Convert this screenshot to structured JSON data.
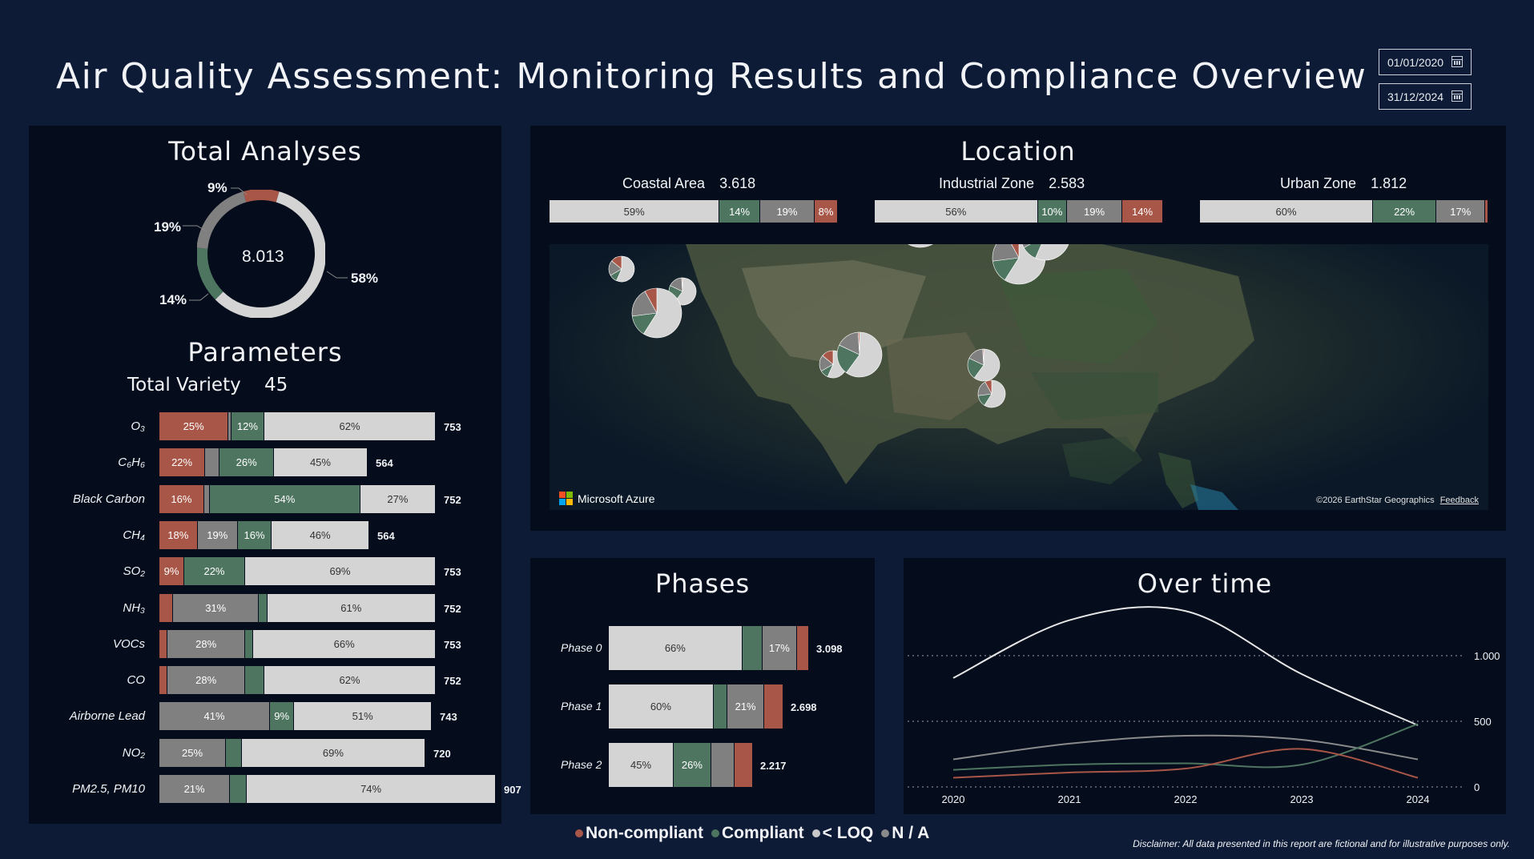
{
  "header": {
    "title": "Air Quality Assessment: Monitoring Results and Compliance Overview",
    "date_start": "01/01/2020",
    "date_end": "31/12/2024"
  },
  "colors": {
    "non_compliant": "#a85648",
    "compliant": "#4e7560",
    "loq": "#808080",
    "na": "#d4d4d4"
  },
  "total_analyses": {
    "title": "Total Analyses",
    "total": "8.013",
    "slices": [
      {
        "category": "Non-compliant",
        "value": 9,
        "label": "9%"
      },
      {
        "category": "< LOQ",
        "value": 19,
        "label": "19%"
      },
      {
        "category": "Compliant",
        "value": 14,
        "label": "14%"
      },
      {
        "category": "N / A",
        "value": 58,
        "label": "58%"
      }
    ]
  },
  "parameters": {
    "title": "Parameters",
    "variety_label": "Total Variety",
    "variety_value": "45",
    "rows": [
      {
        "name": "O₃",
        "total": "753",
        "segs": [
          {
            "c": "nc",
            "v": 25,
            "t": "25%"
          },
          {
            "c": "lq",
            "v": 1,
            "t": ""
          },
          {
            "c": "co",
            "v": 12,
            "t": "12%"
          },
          {
            "c": "na",
            "v": 62,
            "t": "62%"
          }
        ]
      },
      {
        "name": "C₆H₆",
        "total": "564",
        "segs": [
          {
            "c": "nc",
            "v": 22,
            "t": "22%"
          },
          {
            "c": "lq",
            "v": 7,
            "t": ""
          },
          {
            "c": "co",
            "v": 26,
            "t": "26%"
          },
          {
            "c": "na",
            "v": 45,
            "t": "45%"
          }
        ]
      },
      {
        "name": "Black Carbon",
        "total": "752",
        "segs": [
          {
            "c": "nc",
            "v": 16,
            "t": "16%"
          },
          {
            "c": "lq",
            "v": 2,
            "t": ""
          },
          {
            "c": "co",
            "v": 54,
            "t": "54%"
          },
          {
            "c": "na",
            "v": 27,
            "t": "27%"
          }
        ]
      },
      {
        "name": "CH₄",
        "total": "564",
        "segs": [
          {
            "c": "nc",
            "v": 18,
            "t": "18%"
          },
          {
            "c": "lq",
            "v": 19,
            "t": "19%"
          },
          {
            "c": "co",
            "v": 16,
            "t": "16%"
          },
          {
            "c": "na",
            "v": 46,
            "t": "46%"
          }
        ]
      },
      {
        "name": "SO₂",
        "total": "753",
        "segs": [
          {
            "c": "nc",
            "v": 9,
            "t": "9%"
          },
          {
            "c": "co",
            "v": 22,
            "t": "22%"
          },
          {
            "c": "na",
            "v": 69,
            "t": "69%"
          }
        ]
      },
      {
        "name": "NH₃",
        "total": "752",
        "segs": [
          {
            "c": "nc",
            "v": 5,
            "t": ""
          },
          {
            "c": "lq",
            "v": 31,
            "t": "31%"
          },
          {
            "c": "co",
            "v": 3,
            "t": ""
          },
          {
            "c": "na",
            "v": 61,
            "t": "61%"
          }
        ]
      },
      {
        "name": "VOCs",
        "total": "753",
        "segs": [
          {
            "c": "nc",
            "v": 3,
            "t": ""
          },
          {
            "c": "lq",
            "v": 28,
            "t": "28%"
          },
          {
            "c": "co",
            "v": 3,
            "t": ""
          },
          {
            "c": "na",
            "v": 66,
            "t": "66%"
          }
        ]
      },
      {
        "name": "CO",
        "total": "752",
        "segs": [
          {
            "c": "nc",
            "v": 3,
            "t": ""
          },
          {
            "c": "lq",
            "v": 28,
            "t": "28%"
          },
          {
            "c": "co",
            "v": 7,
            "t": ""
          },
          {
            "c": "na",
            "v": 62,
            "t": "62%"
          }
        ]
      },
      {
        "name": "Airborne Lead",
        "total": "743",
        "segs": [
          {
            "c": "lq",
            "v": 41,
            "t": "41%"
          },
          {
            "c": "co",
            "v": 9,
            "t": "9%"
          },
          {
            "c": "na",
            "v": 51,
            "t": "51%"
          }
        ]
      },
      {
        "name": "NO₂",
        "total": "720",
        "segs": [
          {
            "c": "lq",
            "v": 25,
            "t": "25%"
          },
          {
            "c": "co",
            "v": 6,
            "t": ""
          },
          {
            "c": "na",
            "v": 69,
            "t": "69%"
          }
        ]
      },
      {
        "name": "PM2.5, PM10",
        "total": "907",
        "segs": [
          {
            "c": "lq",
            "v": 21,
            "t": "21%"
          },
          {
            "c": "co",
            "v": 5,
            "t": ""
          },
          {
            "c": "na",
            "v": 74,
            "t": "74%"
          }
        ]
      }
    ]
  },
  "location": {
    "title": "Location",
    "zones": [
      {
        "name": "Coastal Area",
        "total": "3.618",
        "segs": [
          {
            "c": "na",
            "v": 59,
            "t": "59%"
          },
          {
            "c": "co",
            "v": 14,
            "t": "14%"
          },
          {
            "c": "lq",
            "v": 19,
            "t": "19%"
          },
          {
            "c": "nc",
            "v": 8,
            "t": "8%"
          }
        ]
      },
      {
        "name": "Industrial Zone",
        "total": "2.583",
        "segs": [
          {
            "c": "na",
            "v": 56,
            "t": "56%"
          },
          {
            "c": "co",
            "v": 10,
            "t": "10%"
          },
          {
            "c": "lq",
            "v": 19,
            "t": "19%"
          },
          {
            "c": "nc",
            "v": 14,
            "t": "14%"
          }
        ]
      },
      {
        "name": "Urban Zone",
        "total": "1.812",
        "segs": [
          {
            "c": "na",
            "v": 60,
            "t": "60%"
          },
          {
            "c": "co",
            "v": 22,
            "t": "22%"
          },
          {
            "c": "lq",
            "v": 17,
            "t": "17%"
          },
          {
            "c": "nc",
            "v": 1,
            "t": ""
          }
        ]
      }
    ],
    "map": {
      "brand": "Microsoft Azure",
      "credit": "©2026 EarthStar Geographics",
      "feedback": "Feedback"
    }
  },
  "phases": {
    "title": "Phases",
    "rows": [
      {
        "name": "Phase 0",
        "total": "3.098",
        "segs": [
          {
            "c": "na",
            "v": 66,
            "t": "66%"
          },
          {
            "c": "co",
            "v": 10,
            "t": ""
          },
          {
            "c": "lq",
            "v": 17,
            "t": "17%"
          },
          {
            "c": "nc",
            "v": 6,
            "t": ""
          }
        ]
      },
      {
        "name": "Phase 1",
        "total": "2.698",
        "segs": [
          {
            "c": "na",
            "v": 60,
            "t": "60%"
          },
          {
            "c": "co",
            "v": 8,
            "t": ""
          },
          {
            "c": "lq",
            "v": 21,
            "t": "21%"
          },
          {
            "c": "nc",
            "v": 11,
            "t": ""
          }
        ]
      },
      {
        "name": "Phase 2",
        "total": "2.217",
        "segs": [
          {
            "c": "na",
            "v": 45,
            "t": "45%"
          },
          {
            "c": "co",
            "v": 26,
            "t": "26%"
          },
          {
            "c": "lq",
            "v": 16,
            "t": ""
          },
          {
            "c": "nc",
            "v": 13,
            "t": ""
          }
        ]
      }
    ]
  },
  "chart_data": {
    "type": "line",
    "title": "Over time",
    "x": [
      2020,
      2021,
      2022,
      2023,
      2024
    ],
    "ylim": [
      0,
      1000
    ],
    "yticks": [
      "1.000",
      "500",
      "0"
    ],
    "ytick_values": [
      1000,
      500,
      0
    ],
    "grid": true,
    "series": [
      {
        "category": "N / A",
        "color": "#e6e6e6",
        "values": [
          830,
          1270,
          1340,
          860,
          470
        ]
      },
      {
        "category": "< LOQ",
        "color": "#8a8a8a",
        "values": [
          210,
          330,
          390,
          360,
          210
        ]
      },
      {
        "category": "Compliant",
        "color": "#4e7560",
        "values": [
          130,
          170,
          180,
          170,
          480
        ]
      },
      {
        "category": "Non-compliant",
        "color": "#a85648",
        "values": [
          70,
          110,
          140,
          290,
          70
        ]
      }
    ]
  },
  "legend": [
    {
      "label": "Non-compliant",
      "color": "#a85648"
    },
    {
      "label": "Compliant",
      "color": "#4e7560"
    },
    {
      "label": "< LOQ",
      "color": "#c8c8c8"
    },
    {
      "label": "N / A",
      "color": "#8a8a8a"
    }
  ],
  "disclaimer": "Disclaimer: All data presented in this report are fictional and for illustrative purposes only."
}
